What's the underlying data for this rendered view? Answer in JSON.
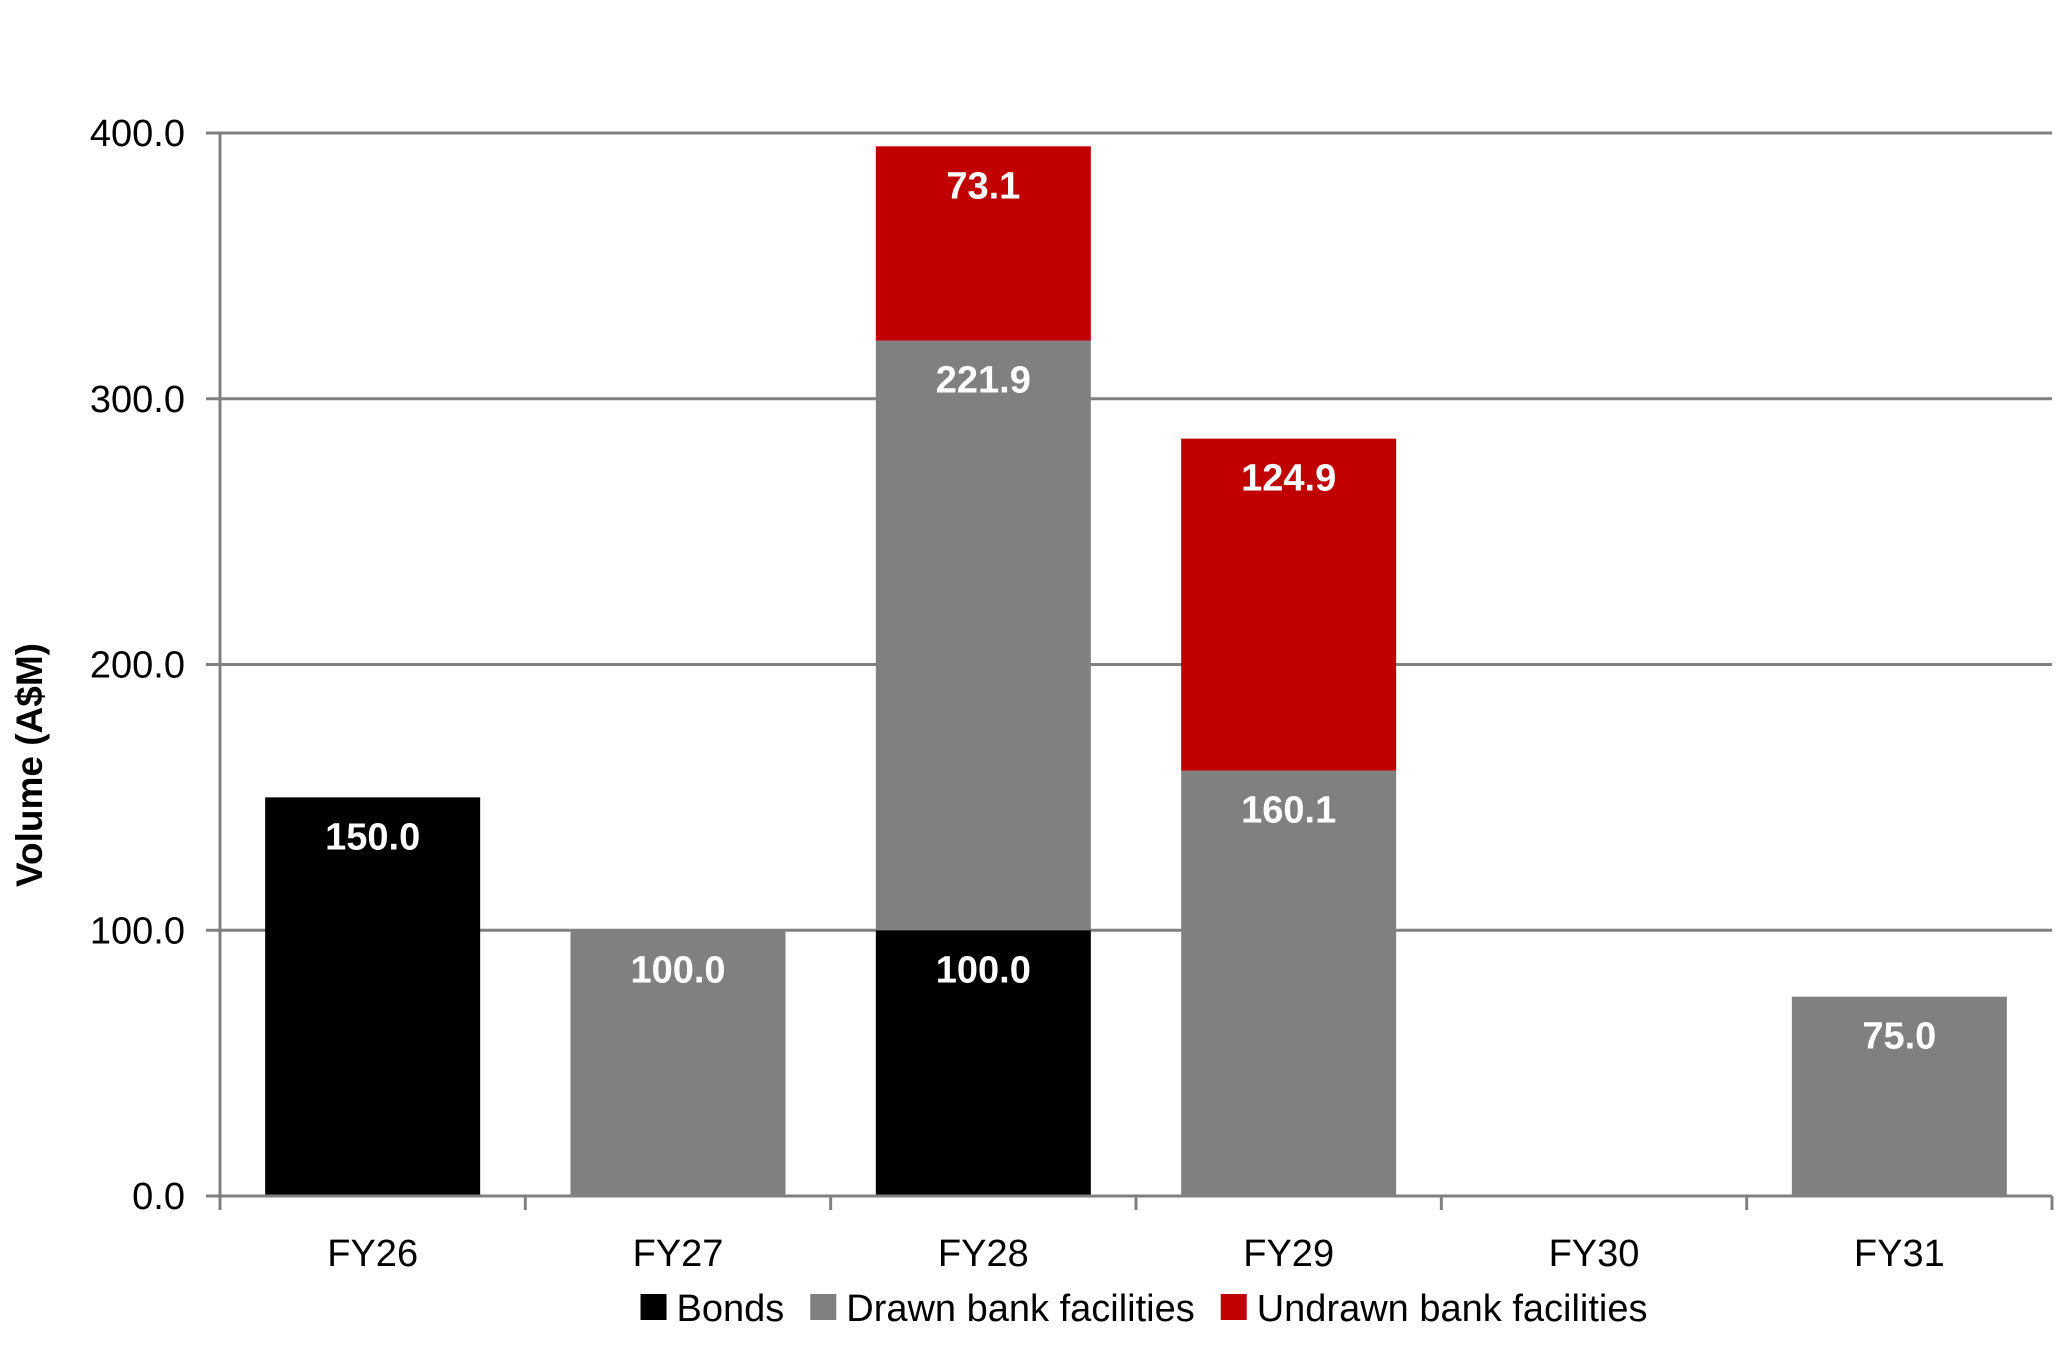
{
  "chart_data": {
    "type": "bar",
    "stacked": true,
    "categories": [
      "FY26",
      "FY27",
      "FY28",
      "FY29",
      "FY30",
      "FY31"
    ],
    "series": [
      {
        "name": "Bonds",
        "color": "#000000",
        "values": [
          150.0,
          0,
          100.0,
          0,
          0,
          0
        ],
        "labels": [
          "150.0",
          "",
          "100.0",
          "",
          "",
          ""
        ]
      },
      {
        "name": "Drawn bank facilities",
        "color": "#808080",
        "values": [
          0,
          100.0,
          221.9,
          160.1,
          0,
          75.0
        ],
        "labels": [
          "",
          "100.0",
          "221.9",
          "160.1",
          "",
          "75.0"
        ]
      },
      {
        "name": "Undrawn bank facilities",
        "color": "#c00000",
        "values": [
          0,
          0,
          73.1,
          124.9,
          0,
          0
        ],
        "labels": [
          "",
          "",
          "73.1",
          "124.9",
          "",
          ""
        ]
      }
    ],
    "ylabel": "Volume (A$M)",
    "xlabel": "",
    "ylim": [
      0,
      400
    ],
    "yticks": [
      "0.0",
      "100.0",
      "200.0",
      "300.0",
      "400.0"
    ],
    "grid": true,
    "legend_position": "bottom"
  }
}
